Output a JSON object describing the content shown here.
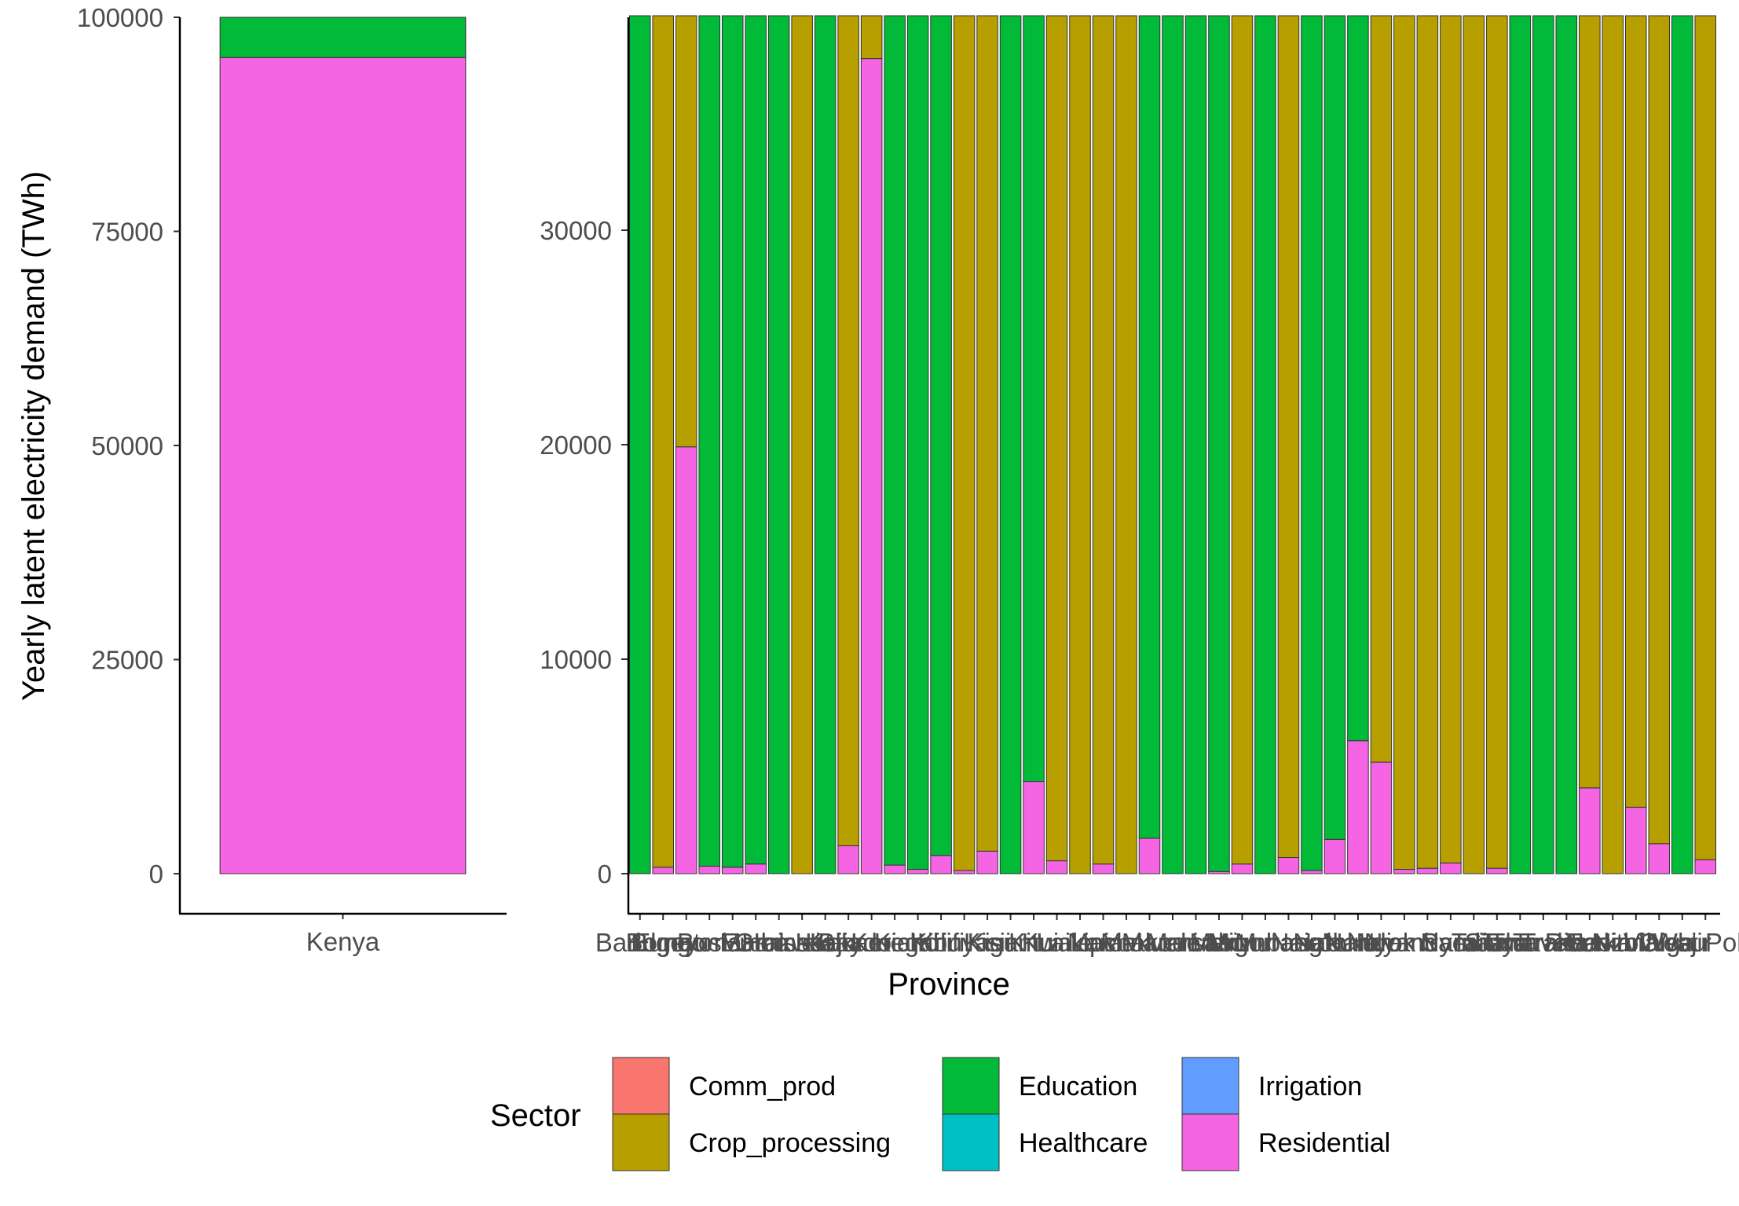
{
  "chart_data": [
    {
      "type": "bar",
      "stacked": true,
      "panel": "left",
      "categories": [
        "Kenya"
      ],
      "ylabel": "Yearly latent electricity demand (TWh)",
      "xlabel": "",
      "ylim": [
        0,
        100000
      ],
      "y_ticks": [
        0,
        25000,
        50000,
        75000,
        100000
      ],
      "y_tick_labels": [
        "0",
        "25000",
        "50000",
        "75000",
        "100000"
      ],
      "series": [
        {
          "name": "Residential",
          "values": [
            95300
          ]
        },
        {
          "name": "Education",
          "values": [
            4700
          ]
        }
      ]
    },
    {
      "type": "bar",
      "stacked": true,
      "panel": "right",
      "xlabel": "Province",
      "ylabel": "",
      "ylim": [
        0,
        40000
      ],
      "y_ticks": [
        0,
        10000,
        20000,
        30000
      ],
      "y_tick_labels": [
        "0",
        "10000",
        "20000",
        "30000"
      ],
      "x_tick_labels": [
        "Baringo",
        "Bomet",
        "Bungoma",
        "Busia",
        "Elgeyo Marakwet",
        "Embu",
        "Garissa",
        "Homa Bay",
        "Isiolo",
        "Kajiado",
        "Kakamega",
        "Kericho",
        "Kiambu",
        "Kilifi",
        "Kirinyaga",
        "Kisii",
        "Kisumu",
        "Kitui",
        "Kwale",
        "Laikipia",
        "Lamu",
        "Machakos",
        "Makueni",
        "Mandera",
        "Marsabit",
        "Meru",
        "Migori",
        "Mombasa",
        "Murang'a",
        "Nairobi",
        "Nakuru",
        "Nandi",
        "Narok",
        "Nyamira",
        "Nyandarua",
        "Nyeri",
        "Samburu",
        "Siaya",
        "Taita Taveta",
        "Tana River",
        "Tharaka Nithi",
        "Trans Nzoia",
        "Turkana",
        "Uasin Gishu",
        "Vihiga",
        "Wajir",
        "West Pokot"
      ],
      "series": [
        {
          "name": "Residential",
          "values": [
            0,
            300,
            19900,
            350,
            300,
            450,
            0,
            0,
            0,
            1300,
            38000,
            400,
            200,
            850,
            150,
            1050,
            0,
            4300,
            600,
            0,
            450,
            0,
            1650,
            0,
            0,
            100,
            450,
            0,
            750,
            150,
            1600,
            6200,
            5200,
            200,
            250,
            500,
            0,
            250,
            0,
            0,
            0,
            4000,
            0,
            3100,
            1400,
            0,
            650
          ]
        },
        {
          "name": "Crop_processing",
          "values": [
            0,
            39700,
            20100,
            0,
            0,
            0,
            0,
            40000,
            0,
            38700,
            2000,
            0,
            0,
            0,
            39850,
            38950,
            0,
            0,
            39400,
            40000,
            39550,
            40000,
            0,
            0,
            0,
            0,
            39550,
            0,
            39250,
            0,
            0,
            0,
            34800,
            39800,
            39750,
            39500,
            40000,
            39750,
            0,
            0,
            0,
            36000,
            40000,
            36900,
            38600,
            0,
            39350
          ]
        },
        {
          "name": "Education",
          "values": [
            40000,
            0,
            0,
            39650,
            39700,
            39550,
            40000,
            0,
            40000,
            0,
            0,
            39600,
            39800,
            39150,
            0,
            0,
            40000,
            35700,
            0,
            0,
            0,
            0,
            38350,
            40000,
            40000,
            39900,
            0,
            40000,
            0,
            39850,
            38400,
            33800,
            0,
            0,
            0,
            0,
            0,
            0,
            40000,
            40000,
            40000,
            0,
            0,
            0,
            0,
            40000,
            0
          ]
        }
      ]
    }
  ],
  "legend": {
    "title": "Sector",
    "items": [
      {
        "name": "Comm_prod",
        "color": "#F8766D"
      },
      {
        "name": "Crop_processing",
        "color": "#B79F00"
      },
      {
        "name": "Education",
        "color": "#00BA38"
      },
      {
        "name": "Healthcare",
        "color": "#00BFC4"
      },
      {
        "name": "Irrigation",
        "color": "#619CFF"
      },
      {
        "name": "Residential",
        "color": "#F564E3"
      }
    ]
  },
  "colors": {
    "Comm_prod": "#F8766D",
    "Crop_processing": "#B79F00",
    "Education": "#00BA38",
    "Healthcare": "#00BFC4",
    "Irrigation": "#619CFF",
    "Residential": "#F564E3"
  }
}
